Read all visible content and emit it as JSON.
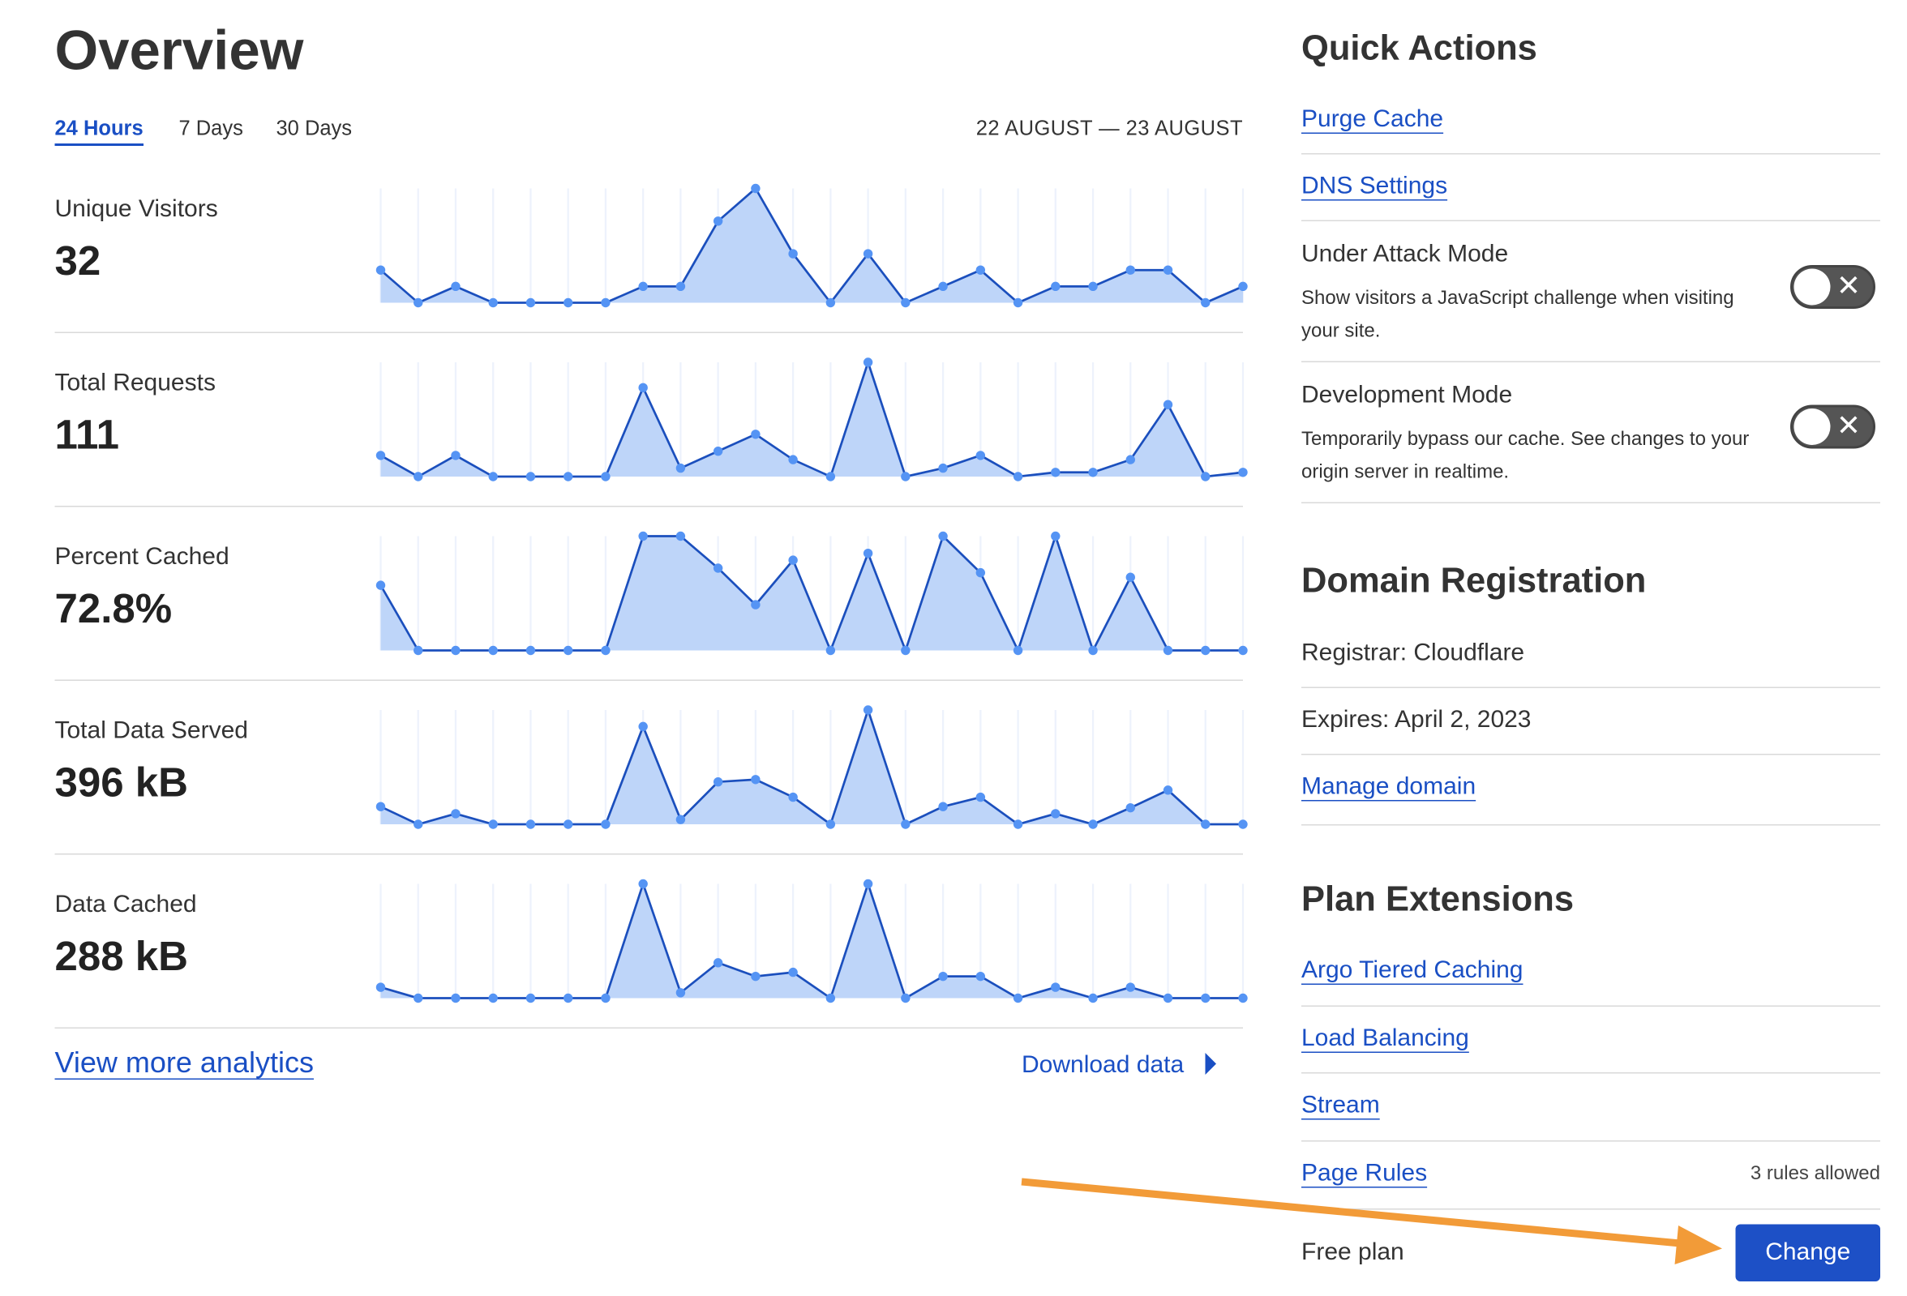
{
  "overview": {
    "title": "Overview",
    "tabs": [
      {
        "label": "24 Hours",
        "active": true
      },
      {
        "label": "7 Days",
        "active": false
      },
      {
        "label": "30 Days",
        "active": false
      }
    ],
    "date_range": "22 AUGUST — 23 AUGUST",
    "metrics": [
      {
        "label": "Unique Visitors",
        "value": "32"
      },
      {
        "label": "Total Requests",
        "value": "111"
      },
      {
        "label": "Percent Cached",
        "value": "72.8%"
      },
      {
        "label": "Total Data Served",
        "value": "396 kB"
      },
      {
        "label": "Data Cached",
        "value": "288 kB"
      }
    ],
    "view_more": "View more analytics",
    "download": "Download data"
  },
  "chart_data": [
    {
      "type": "area",
      "values": [
        2,
        0,
        1,
        0,
        0,
        0,
        0,
        1,
        1,
        5,
        7,
        3,
        0,
        3,
        0,
        1,
        2,
        0,
        1,
        1,
        2,
        2,
        0,
        1
      ]
    },
    {
      "type": "area",
      "values": [
        5,
        0,
        5,
        0,
        0,
        0,
        0,
        21,
        2,
        6,
        10,
        4,
        0,
        27,
        0,
        2,
        5,
        0,
        1,
        1,
        4,
        17,
        0,
        1
      ]
    },
    {
      "type": "area",
      "ylim": [
        0,
        100
      ],
      "values": [
        57,
        0,
        0,
        0,
        0,
        0,
        0,
        100,
        100,
        72,
        40,
        79,
        0,
        85,
        0,
        100,
        68,
        0,
        100,
        0,
        64,
        0,
        0,
        0
      ]
    },
    {
      "type": "area",
      "values": [
        15,
        0,
        9,
        0,
        0,
        0,
        0,
        83,
        4,
        36,
        38,
        23,
        0,
        97,
        0,
        15,
        23,
        0,
        9,
        0,
        14,
        29,
        0,
        0
      ]
    },
    {
      "type": "area",
      "values": [
        8,
        0,
        0,
        0,
        0,
        0,
        0,
        84,
        4,
        26,
        16,
        19,
        0,
        84,
        0,
        16,
        16,
        0,
        8,
        0,
        8,
        0,
        0,
        0
      ]
    }
  ],
  "colors": {
    "accent": "#1a4fc4",
    "fill": "#bed5f9",
    "line": "#1b4fbd",
    "dot": "#5594f4",
    "arrow": "#f29b38",
    "toggle": "#555555"
  },
  "quick_actions": {
    "title": "Quick Actions",
    "purge": "Purge Cache",
    "dns": "DNS Settings",
    "under_attack": {
      "title": "Under Attack Mode",
      "desc": "Show visitors a JavaScript challenge when visiting your site.",
      "enabled": false
    },
    "dev_mode": {
      "title": "Development Mode",
      "desc": "Temporarily bypass our cache. See changes to your origin server in realtime.",
      "enabled": false
    }
  },
  "domain": {
    "title": "Domain Registration",
    "registrar": "Registrar: Cloudflare",
    "expires": "Expires: April 2, 2023",
    "manage": "Manage domain"
  },
  "plan": {
    "title": "Plan Extensions",
    "argo": "Argo Tiered Caching",
    "lb": "Load Balancing",
    "stream": "Stream",
    "page_rules": "Page Rules",
    "rules_allowed": "3 rules allowed",
    "plan_name": "Free plan",
    "change": "Change"
  }
}
